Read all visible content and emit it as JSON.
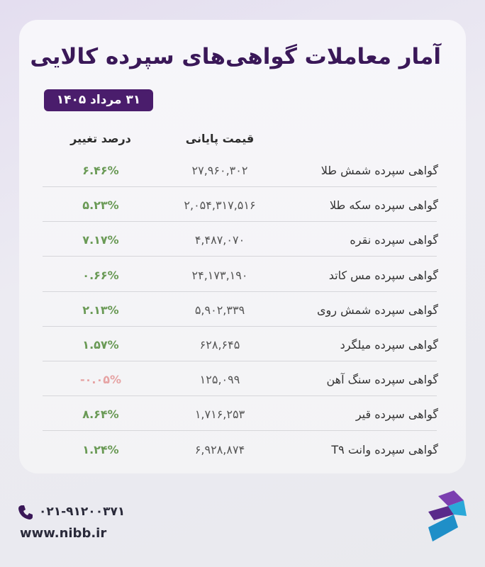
{
  "header": {
    "title": "آمار معاملات گواهی‌های سپرده کالایی",
    "date": "۳۱ مرداد ۱۴۰۵"
  },
  "table": {
    "columns": [
      "قیمت پایانی",
      "درصد تغییر"
    ],
    "rows": [
      [
        "گواهی سپرده شمش طلا",
        "۲۷,۹۶۰,۳۰۲",
        "۶.۴۶%"
      ],
      [
        "گواهی سپرده سکه طلا",
        "۲,۰۵۴,۳۱۷,۵۱۶",
        "۵.۲۳%"
      ],
      [
        "گواهی سپرده نقره",
        "۴,۴۸۷,۰۷۰",
        "۷.۱۷%"
      ],
      [
        "گواهی سپرده مس کاتد",
        "۲۴,۱۷۳,۱۹۰",
        "۰.۶۶%"
      ],
      [
        "گواهی سپرده شمش روی",
        "۵,۹۰۲,۳۳۹",
        "۲.۱۳%"
      ],
      [
        "گواهی سپرده میلگرد",
        "۶۲۸,۶۴۵",
        "۱.۵۷%"
      ],
      [
        "گواهی سپرده سنگ آهن",
        "۱۲۵,۰۹۹",
        "-۰.۰۵%"
      ],
      [
        "گواهی سپرده قیر",
        "۱,۷۱۶,۲۵۳",
        "۸.۶۴%"
      ],
      [
        "گواهی سپرده وانت T۹",
        "۶,۹۲۸,۸۷۴",
        "۱.۲۴%"
      ]
    ]
  },
  "footer": {
    "phone": "۰۲۱-۹۱۲۰۰۳۷۱",
    "website": "www.nibb.ir"
  }
}
